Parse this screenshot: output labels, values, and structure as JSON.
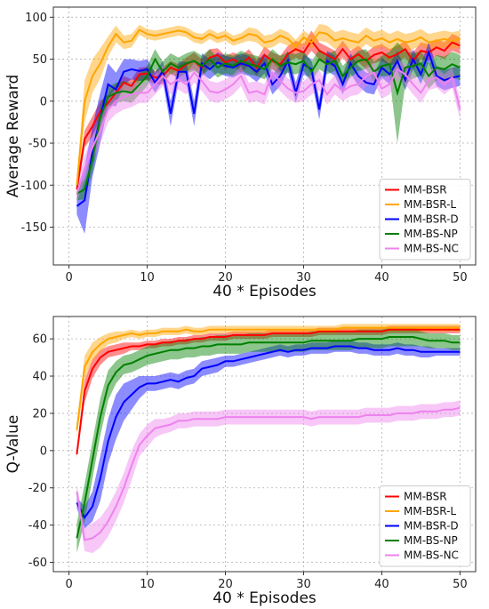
{
  "chart_data": [
    {
      "type": "line",
      "title": "",
      "xlabel": "40 * Episodes",
      "ylabel": "Average Reward",
      "xlim": [
        -2,
        52
      ],
      "ylim": [
        -195,
        112
      ],
      "xticks": [
        0,
        10,
        20,
        30,
        40,
        50
      ],
      "yticks": [
        -150,
        -100,
        -50,
        0,
        50,
        100
      ],
      "grid": true,
      "legend_position": "bottom-right",
      "x": [
        1,
        2,
        3,
        4,
        5,
        6,
        7,
        8,
        9,
        10,
        11,
        12,
        13,
        14,
        15,
        16,
        17,
        18,
        19,
        20,
        21,
        22,
        23,
        24,
        25,
        26,
        27,
        28,
        29,
        30,
        31,
        32,
        33,
        34,
        35,
        36,
        37,
        38,
        39,
        40,
        41,
        42,
        43,
        44,
        45,
        46,
        47,
        48,
        49,
        50
      ],
      "series": [
        {
          "name": "MM-BSR",
          "color": "#ff0000",
          "values": [
            -105,
            -45,
            -30,
            -12,
            -2,
            10,
            22,
            18,
            32,
            33,
            28,
            30,
            40,
            36,
            44,
            48,
            40,
            52,
            55,
            46,
            50,
            44,
            52,
            40,
            55,
            48,
            44,
            56,
            62,
            58,
            72,
            60,
            55,
            50,
            62,
            50,
            56,
            48,
            55,
            58,
            52,
            56,
            62,
            48,
            60,
            58,
            64,
            60,
            70,
            66
          ],
          "band": [
            8,
            10,
            12,
            12,
            10,
            10,
            8,
            8,
            8,
            8,
            8,
            10,
            8,
            8,
            8,
            10,
            10,
            10,
            8,
            8,
            8,
            10,
            10,
            10,
            10,
            10,
            10,
            10,
            10,
            10,
            12,
            10,
            10,
            10,
            10,
            10,
            10,
            10,
            10,
            10,
            10,
            10,
            10,
            10,
            10,
            10,
            10,
            10,
            10,
            10
          ]
        },
        {
          "name": "MM-BSR-L",
          "color": "#ffa500",
          "values": [
            -100,
            0,
            30,
            45,
            65,
            80,
            70,
            72,
            85,
            80,
            78,
            80,
            82,
            84,
            82,
            76,
            74,
            80,
            75,
            78,
            72,
            75,
            80,
            78,
            70,
            72,
            78,
            74,
            65,
            76,
            70,
            82,
            80,
            72,
            75,
            72,
            70,
            78,
            72,
            75,
            70,
            74,
            70,
            72,
            76,
            70,
            72,
            74,
            72,
            74
          ],
          "band": [
            8,
            25,
            20,
            18,
            12,
            10,
            8,
            8,
            6,
            6,
            6,
            6,
            6,
            6,
            6,
            6,
            6,
            6,
            6,
            6,
            6,
            6,
            8,
            8,
            8,
            8,
            8,
            8,
            8,
            8,
            8,
            10,
            10,
            10,
            10,
            10,
            10,
            10,
            10,
            10,
            10,
            10,
            10,
            10,
            10,
            10,
            10,
            10,
            10,
            10
          ]
        },
        {
          "name": "MM-BSR-D",
          "color": "#0000ff",
          "values": [
            -125,
            -118,
            -60,
            -20,
            20,
            14,
            35,
            38,
            36,
            38,
            22,
            36,
            -15,
            35,
            35,
            -15,
            45,
            38,
            46,
            42,
            40,
            45,
            42,
            35,
            45,
            20,
            30,
            48,
            10,
            44,
            38,
            -10,
            48,
            42,
            20,
            45,
            30,
            22,
            20,
            40,
            32,
            48,
            25,
            50,
            32,
            58,
            30,
            25,
            28,
            30
          ],
          "band": [
            10,
            40,
            30,
            30,
            25,
            20,
            15,
            12,
            12,
            12,
            12,
            12,
            15,
            12,
            12,
            15,
            12,
            12,
            12,
            12,
            12,
            12,
            12,
            12,
            12,
            12,
            12,
            12,
            12,
            12,
            12,
            12,
            12,
            12,
            12,
            12,
            12,
            12,
            12,
            12,
            12,
            12,
            12,
            12,
            12,
            12,
            12,
            12,
            12,
            12
          ]
        },
        {
          "name": "MM-BS-NP",
          "color": "#008000",
          "values": [
            -110,
            -105,
            -70,
            -20,
            5,
            10,
            12,
            10,
            20,
            30,
            50,
            35,
            45,
            40,
            45,
            48,
            42,
            50,
            40,
            45,
            42,
            48,
            44,
            42,
            38,
            50,
            42,
            46,
            44,
            48,
            35,
            50,
            44,
            48,
            30,
            40,
            48,
            50,
            35,
            42,
            44,
            10,
            40,
            42,
            45,
            30,
            40,
            38,
            44,
            40
          ],
          "band": [
            8,
            12,
            15,
            15,
            12,
            12,
            12,
            12,
            12,
            12,
            12,
            12,
            12,
            12,
            12,
            12,
            12,
            12,
            12,
            12,
            12,
            12,
            12,
            12,
            12,
            12,
            12,
            12,
            12,
            12,
            12,
            12,
            12,
            12,
            12,
            12,
            12,
            12,
            12,
            12,
            15,
            60,
            20,
            15,
            15,
            15,
            15,
            15,
            15,
            15
          ]
        },
        {
          "name": "MM-BS-NC",
          "color": "#ee82ee",
          "values": [
            -110,
            -80,
            -55,
            -35,
            -10,
            0,
            5,
            8,
            10,
            10,
            20,
            30,
            20,
            26,
            20,
            34,
            24,
            12,
            10,
            14,
            20,
            30,
            10,
            12,
            8,
            34,
            24,
            15,
            10,
            12,
            20,
            25,
            8,
            20,
            12,
            18,
            20,
            30,
            34,
            15,
            20,
            38,
            32,
            20,
            10,
            25,
            28,
            20,
            28,
            -10
          ],
          "band": [
            10,
            15,
            15,
            15,
            15,
            15,
            15,
            15,
            12,
            12,
            12,
            12,
            12,
            12,
            12,
            12,
            12,
            12,
            12,
            12,
            12,
            12,
            12,
            12,
            12,
            12,
            12,
            12,
            12,
            12,
            12,
            12,
            12,
            12,
            12,
            12,
            12,
            12,
            12,
            12,
            12,
            12,
            12,
            12,
            12,
            12,
            12,
            12,
            12,
            12
          ]
        }
      ]
    },
    {
      "type": "line",
      "title": "",
      "xlabel": "40 * Episodes",
      "ylabel": "Q-Value",
      "xlim": [
        -2,
        52
      ],
      "ylim": [
        -65,
        72
      ],
      "xticks": [
        0,
        10,
        20,
        30,
        40,
        50
      ],
      "yticks": [
        -60,
        -40,
        -20,
        0,
        20,
        40,
        60
      ],
      "grid": true,
      "legend_position": "bottom-right",
      "x": [
        1,
        2,
        3,
        4,
        5,
        6,
        7,
        8,
        9,
        10,
        11,
        12,
        13,
        14,
        15,
        16,
        17,
        18,
        19,
        20,
        21,
        22,
        23,
        24,
        25,
        26,
        27,
        28,
        29,
        30,
        31,
        32,
        33,
        34,
        35,
        36,
        37,
        38,
        39,
        40,
        41,
        42,
        43,
        44,
        45,
        46,
        47,
        48,
        49,
        50
      ],
      "series": [
        {
          "name": "MM-BSR",
          "color": "#ff0000",
          "values": [
            -2,
            32,
            44,
            50,
            53,
            54,
            55,
            56,
            56,
            57,
            57,
            58,
            58,
            59,
            59,
            60,
            60,
            61,
            61,
            61,
            62,
            62,
            62,
            62,
            62,
            63,
            63,
            63,
            63,
            63,
            63,
            64,
            64,
            64,
            64,
            64,
            64,
            64,
            64,
            64,
            65,
            65,
            65,
            65,
            65,
            65,
            65,
            65,
            65,
            65
          ],
          "band": [
            2,
            6,
            5,
            4,
            3,
            3,
            3,
            2,
            2,
            2,
            2,
            2,
            2,
            2,
            2,
            2,
            2,
            2,
            2,
            2,
            2,
            2,
            2,
            2,
            2,
            2,
            2,
            2,
            2,
            2,
            2,
            2,
            2,
            2,
            2,
            2,
            2,
            2,
            2,
            2,
            2,
            2,
            2,
            2,
            2,
            2,
            2,
            2,
            2,
            2
          ]
        },
        {
          "name": "MM-BSR-L",
          "color": "#ffa500",
          "values": [
            11,
            45,
            53,
            57,
            60,
            61,
            62,
            63,
            62,
            63,
            63,
            64,
            64,
            64,
            65,
            64,
            64,
            65,
            65,
            65,
            65,
            65,
            65,
            65,
            65,
            65,
            65,
            65,
            65,
            65,
            65,
            65,
            65,
            65,
            66,
            66,
            66,
            66,
            66,
            66,
            66,
            66,
            66,
            66,
            66,
            66,
            66,
            66,
            66,
            66
          ],
          "band": [
            4,
            6,
            5,
            4,
            3,
            3,
            2,
            2,
            2,
            2,
            2,
            2,
            2,
            2,
            2,
            2,
            2,
            2,
            2,
            2,
            2,
            2,
            2,
            2,
            2,
            2,
            2,
            2,
            2,
            2,
            2,
            2,
            2,
            2,
            2,
            2,
            2,
            2,
            2,
            2,
            2,
            2,
            2,
            2,
            2,
            2,
            2,
            2,
            2,
            2
          ]
        },
        {
          "name": "MM-BSR-D",
          "color": "#0000ff",
          "values": [
            -28,
            -36,
            -30,
            -15,
            5,
            18,
            26,
            30,
            34,
            36,
            36,
            37,
            38,
            37,
            39,
            40,
            44,
            45,
            46,
            48,
            48,
            49,
            50,
            51,
            52,
            53,
            54,
            53,
            54,
            54,
            55,
            55,
            55,
            56,
            56,
            56,
            55,
            55,
            54,
            54,
            54,
            55,
            54,
            54,
            53,
            53,
            53,
            53,
            53,
            53
          ],
          "band": [
            3,
            6,
            8,
            12,
            12,
            12,
            10,
            8,
            6,
            4,
            4,
            4,
            4,
            4,
            4,
            4,
            4,
            4,
            4,
            3,
            3,
            3,
            3,
            3,
            3,
            3,
            3,
            3,
            3,
            3,
            3,
            3,
            3,
            3,
            3,
            3,
            3,
            3,
            3,
            3,
            3,
            3,
            3,
            3,
            3,
            3,
            2,
            2,
            2,
            2
          ]
        },
        {
          "name": "MM-BS-NP",
          "color": "#008000",
          "values": [
            -47,
            -28,
            -5,
            18,
            35,
            42,
            46,
            47,
            49,
            51,
            52,
            53,
            54,
            54,
            55,
            55,
            56,
            56,
            57,
            57,
            57,
            57,
            58,
            58,
            58,
            58,
            58,
            58,
            58,
            58,
            59,
            59,
            59,
            59,
            59,
            59,
            60,
            60,
            60,
            60,
            61,
            61,
            61,
            61,
            60,
            59,
            59,
            59,
            58,
            58
          ],
          "band": [
            8,
            10,
            10,
            10,
            8,
            6,
            5,
            5,
            5,
            5,
            5,
            5,
            5,
            5,
            5,
            5,
            5,
            5,
            5,
            5,
            5,
            5,
            5,
            5,
            5,
            5,
            5,
            5,
            5,
            5,
            5,
            5,
            5,
            5,
            5,
            5,
            5,
            5,
            5,
            5,
            5,
            5,
            5,
            5,
            4,
            4,
            4,
            4,
            4,
            4
          ]
        },
        {
          "name": "MM-BS-NC",
          "color": "#ee82ee",
          "values": [
            -22,
            -48,
            -47,
            -44,
            -38,
            -30,
            -20,
            -8,
            3,
            8,
            12,
            13,
            14,
            16,
            16,
            17,
            17,
            17,
            17,
            18,
            18,
            18,
            18,
            18,
            18,
            18,
            18,
            18,
            18,
            18,
            17,
            18,
            18,
            18,
            18,
            18,
            18,
            19,
            19,
            19,
            19,
            20,
            20,
            20,
            21,
            21,
            21,
            22,
            22,
            23
          ],
          "band": [
            4,
            6,
            8,
            8,
            8,
            8,
            8,
            8,
            6,
            6,
            5,
            4,
            4,
            4,
            4,
            4,
            4,
            4,
            4,
            4,
            4,
            4,
            4,
            4,
            4,
            4,
            4,
            4,
            4,
            4,
            4,
            4,
            4,
            4,
            4,
            4,
            4,
            4,
            4,
            4,
            4,
            4,
            4,
            4,
            4,
            4,
            4,
            4,
            4,
            4
          ]
        }
      ]
    }
  ]
}
